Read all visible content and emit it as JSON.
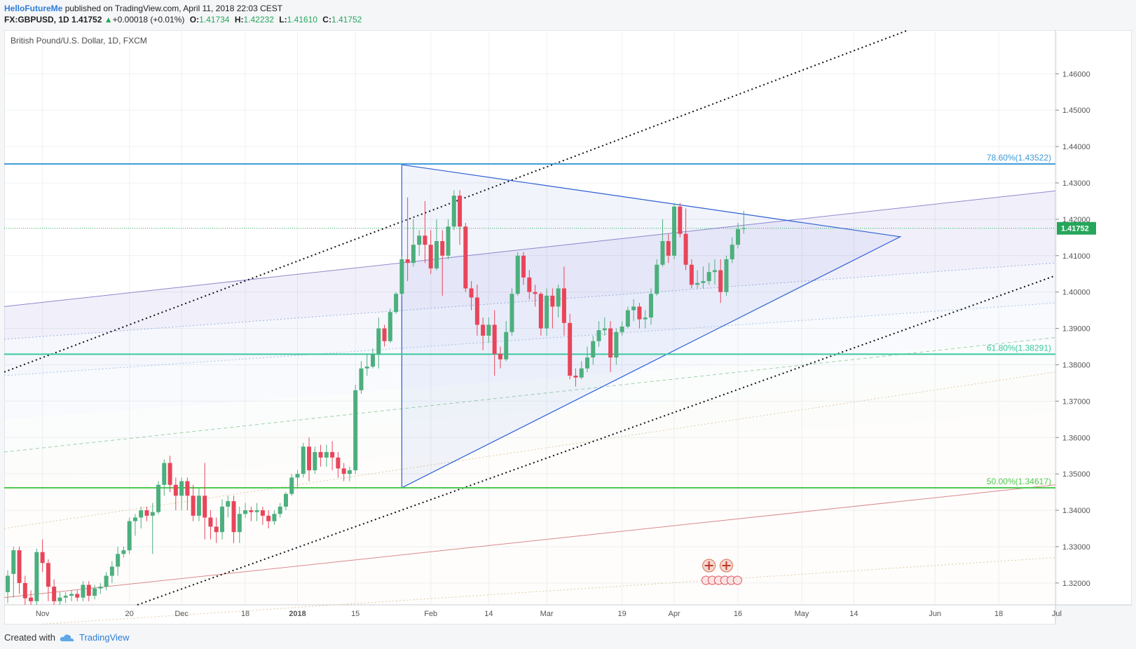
{
  "header": {
    "author": "HelloFutureMe",
    "published_text": "published on TradingView.com, April 11, 2018 22:03 CEST",
    "symbol": "FX:GBPUSD, 1D",
    "last": "1.41752",
    "change": "+0.00018 (+0.01%)",
    "o_label": "O:",
    "o": "1.41734",
    "h_label": "H:",
    "h": "1.42232",
    "l_label": "L:",
    "l": "1.41610",
    "c_label": "C:",
    "c": "1.41752"
  },
  "footer": {
    "created_with": "Created with",
    "brand": "TradingView"
  },
  "colors": {
    "up": "#4caf7d",
    "down": "#e8455a",
    "fib786": "#3d9ad6",
    "fib618": "#3cc8a0",
    "fib50": "#4ec94e",
    "triangle": "#2d5fd4",
    "price_line": "#26a65b"
  },
  "chart_data": {
    "type": "candlestick",
    "title": "British Pound/U.S. Dollar, 1D, FXCM",
    "ylim": [
      1.314,
      1.472
    ],
    "grid": true,
    "y_ticks": [
      "1.46000",
      "1.45000",
      "1.44000",
      "1.43000",
      "1.42000",
      "1.41000",
      "1.40000",
      "1.39000",
      "1.38000",
      "1.37000",
      "1.36000",
      "1.35000",
      "1.34000",
      "1.33000",
      "1.32000"
    ],
    "x_ticks": [
      {
        "label": "Nov",
        "idx": 6
      },
      {
        "label": "20",
        "idx": 21
      },
      {
        "label": "Dec",
        "idx": 30
      },
      {
        "label": "18",
        "idx": 41
      },
      {
        "label": "2018",
        "idx": 50
      },
      {
        "label": "15",
        "idx": 60
      },
      {
        "label": "Feb",
        "idx": 73
      },
      {
        "label": "14",
        "idx": 83
      },
      {
        "label": "Mar",
        "idx": 93
      },
      {
        "label": "19",
        "idx": 106
      },
      {
        "label": "Apr",
        "idx": 115
      },
      {
        "label": "16",
        "idx": 126
      },
      {
        "label": "May",
        "idx": 137
      },
      {
        "label": "14",
        "idx": 146
      },
      {
        "label": "Jun",
        "idx": 160
      },
      {
        "label": "18",
        "idx": 171
      },
      {
        "label": "Jul",
        "idx": 181
      }
    ],
    "last_price_label": "1.41752",
    "last_price": 1.41752,
    "fib_levels": [
      {
        "label": "78.60%(1.43522)",
        "value": 1.43522,
        "color": "#3d9ad6"
      },
      {
        "label": "61.80%(1.38291)",
        "value": 1.38291,
        "color": "#3cc8a0"
      },
      {
        "label": "50.00%(1.34617)",
        "value": 1.34617,
        "color": "#4ec94e"
      }
    ],
    "triangle": [
      [
        68,
        1.3462
      ],
      [
        67,
        1.435
      ],
      [
        154,
        1.4152
      ]
    ],
    "candles": [
      [
        1.3175,
        1.322,
        1.3145,
        1.3235
      ],
      [
        1.3225,
        1.329,
        1.316,
        1.33
      ],
      [
        1.329,
        1.32,
        1.317,
        1.33
      ],
      [
        1.32,
        1.3158,
        1.314,
        1.322
      ],
      [
        1.316,
        1.315,
        1.314,
        1.318
      ],
      [
        1.315,
        1.3285,
        1.314,
        1.3295
      ],
      [
        1.3285,
        1.3255,
        1.323,
        1.332
      ],
      [
        1.3255,
        1.319,
        1.315,
        1.3265
      ],
      [
        1.319,
        1.315,
        1.314,
        1.321
      ],
      [
        1.315,
        1.316,
        1.314,
        1.3175
      ],
      [
        1.316,
        1.3165,
        1.3145,
        1.3175
      ],
      [
        1.3165,
        1.317,
        1.315,
        1.318
      ],
      [
        1.317,
        1.316,
        1.315,
        1.318
      ],
      [
        1.316,
        1.3195,
        1.315,
        1.3205
      ],
      [
        1.3195,
        1.3165,
        1.315,
        1.3205
      ],
      [
        1.3165,
        1.3185,
        1.3155,
        1.3195
      ],
      [
        1.3185,
        1.319,
        1.317,
        1.32
      ],
      [
        1.319,
        1.322,
        1.318,
        1.323
      ],
      [
        1.322,
        1.3245,
        1.32,
        1.326
      ],
      [
        1.3245,
        1.328,
        1.322,
        1.33
      ],
      [
        1.328,
        1.329,
        1.327,
        1.33
      ],
      [
        1.329,
        1.337,
        1.328,
        1.338
      ],
      [
        1.337,
        1.338,
        1.333,
        1.339
      ],
      [
        1.338,
        1.34,
        1.335,
        1.341
      ],
      [
        1.34,
        1.3385,
        1.337,
        1.341
      ],
      [
        1.3385,
        1.3395,
        1.328,
        1.342
      ],
      [
        1.3395,
        1.347,
        1.339,
        1.348
      ],
      [
        1.347,
        1.353,
        1.344,
        1.354
      ],
      [
        1.353,
        1.347,
        1.345,
        1.355
      ],
      [
        1.347,
        1.344,
        1.34,
        1.349
      ],
      [
        1.344,
        1.348,
        1.34,
        1.349
      ],
      [
        1.348,
        1.344,
        1.34,
        1.349
      ],
      [
        1.344,
        1.3385,
        1.337,
        1.347
      ],
      [
        1.3385,
        1.344,
        1.337,
        1.346
      ],
      [
        1.344,
        1.338,
        1.332,
        1.353
      ],
      [
        1.338,
        1.3355,
        1.332,
        1.34
      ],
      [
        1.3355,
        1.334,
        1.331,
        1.338
      ],
      [
        1.334,
        1.341,
        1.332,
        1.343
      ],
      [
        1.341,
        1.3425,
        1.338,
        1.344
      ],
      [
        1.3425,
        1.334,
        1.331,
        1.344
      ],
      [
        1.334,
        1.339,
        1.331,
        1.341
      ],
      [
        1.339,
        1.34,
        1.338,
        1.342
      ],
      [
        1.34,
        1.3395,
        1.337,
        1.341
      ],
      [
        1.3395,
        1.34,
        1.337,
        1.342
      ],
      [
        1.34,
        1.3385,
        1.336,
        1.341
      ],
      [
        1.3385,
        1.337,
        1.335,
        1.34
      ],
      [
        1.337,
        1.339,
        1.336,
        1.34
      ],
      [
        1.339,
        1.341,
        1.338,
        1.342
      ],
      [
        1.341,
        1.3445,
        1.34,
        1.345
      ],
      [
        1.3445,
        1.349,
        1.344,
        1.35
      ],
      [
        1.349,
        1.35,
        1.346,
        1.351
      ],
      [
        1.35,
        1.3575,
        1.349,
        1.3585
      ],
      [
        1.3575,
        1.351,
        1.348,
        1.36
      ],
      [
        1.351,
        1.356,
        1.35,
        1.3575
      ],
      [
        1.356,
        1.3545,
        1.352,
        1.358
      ],
      [
        1.3545,
        1.356,
        1.352,
        1.358
      ],
      [
        1.356,
        1.3545,
        1.351,
        1.359
      ],
      [
        1.3545,
        1.3515,
        1.349,
        1.356
      ],
      [
        1.3515,
        1.35,
        1.348,
        1.353
      ],
      [
        1.35,
        1.351,
        1.348,
        1.352
      ],
      [
        1.351,
        1.373,
        1.35,
        1.3745
      ],
      [
        1.373,
        1.379,
        1.372,
        1.381
      ],
      [
        1.379,
        1.3795,
        1.377,
        1.383
      ],
      [
        1.3795,
        1.383,
        1.379,
        1.3845
      ],
      [
        1.383,
        1.39,
        1.379,
        1.393
      ],
      [
        1.39,
        1.3865,
        1.385,
        1.391
      ],
      [
        1.3865,
        1.3945,
        1.386,
        1.3955
      ],
      [
        1.3945,
        1.3995,
        1.394,
        1.4
      ],
      [
        1.3995,
        1.409,
        1.399,
        1.41
      ],
      [
        1.409,
        1.408,
        1.403,
        1.426
      ],
      [
        1.408,
        1.413,
        1.407,
        1.42
      ],
      [
        1.413,
        1.4155,
        1.41,
        1.417
      ],
      [
        1.4155,
        1.413,
        1.408,
        1.425
      ],
      [
        1.413,
        1.4065,
        1.405,
        1.417
      ],
      [
        1.4065,
        1.414,
        1.406,
        1.42
      ],
      [
        1.414,
        1.41,
        1.399,
        1.417
      ],
      [
        1.41,
        1.418,
        1.409,
        1.42
      ],
      [
        1.418,
        1.4265,
        1.417,
        1.428
      ],
      [
        1.4265,
        1.418,
        1.413,
        1.428
      ],
      [
        1.418,
        1.401,
        1.4,
        1.419
      ],
      [
        1.401,
        1.3985,
        1.395,
        1.403
      ],
      [
        1.3985,
        1.391,
        1.388,
        1.402
      ],
      [
        1.391,
        1.388,
        1.384,
        1.393
      ],
      [
        1.388,
        1.391,
        1.386,
        1.393
      ],
      [
        1.391,
        1.383,
        1.377,
        1.395
      ],
      [
        1.383,
        1.3815,
        1.379,
        1.385
      ],
      [
        1.3815,
        1.389,
        1.381,
        1.392
      ],
      [
        1.389,
        1.3995,
        1.388,
        1.401
      ],
      [
        1.3995,
        1.41,
        1.399,
        1.411
      ],
      [
        1.41,
        1.404,
        1.402,
        1.411
      ],
      [
        1.404,
        1.4,
        1.398,
        1.406
      ],
      [
        1.4,
        1.3995,
        1.396,
        1.402
      ],
      [
        1.3995,
        1.39,
        1.388,
        1.4
      ],
      [
        1.39,
        1.399,
        1.388,
        1.401
      ],
      [
        1.399,
        1.396,
        1.39,
        1.401
      ],
      [
        1.396,
        1.401,
        1.393,
        1.402
      ],
      [
        1.401,
        1.3915,
        1.388,
        1.407
      ],
      [
        1.3915,
        1.377,
        1.376,
        1.394
      ],
      [
        1.377,
        1.3765,
        1.374,
        1.379
      ],
      [
        1.3765,
        1.379,
        1.376,
        1.381
      ],
      [
        1.379,
        1.382,
        1.378,
        1.385
      ],
      [
        1.382,
        1.3865,
        1.38,
        1.388
      ],
      [
        1.3865,
        1.3895,
        1.385,
        1.392
      ],
      [
        1.3895,
        1.39,
        1.388,
        1.393
      ],
      [
        1.39,
        1.382,
        1.378,
        1.392
      ],
      [
        1.382,
        1.389,
        1.38,
        1.39
      ],
      [
        1.389,
        1.3905,
        1.388,
        1.392
      ],
      [
        1.3905,
        1.395,
        1.39,
        1.396
      ],
      [
        1.395,
        1.396,
        1.392,
        1.398
      ],
      [
        1.396,
        1.3925,
        1.39,
        1.397
      ],
      [
        1.3925,
        1.393,
        1.39,
        1.395
      ],
      [
        1.393,
        1.3995,
        1.391,
        1.401
      ],
      [
        1.3995,
        1.4075,
        1.399,
        1.409
      ],
      [
        1.4075,
        1.414,
        1.407,
        1.42
      ],
      [
        1.414,
        1.41,
        1.408,
        1.416
      ],
      [
        1.41,
        1.4235,
        1.409,
        1.4245
      ],
      [
        1.4235,
        1.416,
        1.415,
        1.4245
      ],
      [
        1.416,
        1.4075,
        1.406,
        1.423
      ],
      [
        1.4075,
        1.402,
        1.401,
        1.409
      ],
      [
        1.402,
        1.4025,
        1.401,
        1.406
      ],
      [
        1.4025,
        1.403,
        1.401,
        1.407
      ],
      [
        1.403,
        1.4055,
        1.402,
        1.408
      ],
      [
        1.4055,
        1.406,
        1.402,
        1.409
      ],
      [
        1.406,
        1.4,
        1.397,
        1.409
      ],
      [
        1.4,
        1.409,
        1.399,
        1.41
      ],
      [
        1.409,
        1.413,
        1.408,
        1.415
      ],
      [
        1.413,
        1.4173,
        1.412,
        1.419
      ],
      [
        1.41734,
        1.41752,
        1.4161,
        1.42232
      ]
    ]
  }
}
